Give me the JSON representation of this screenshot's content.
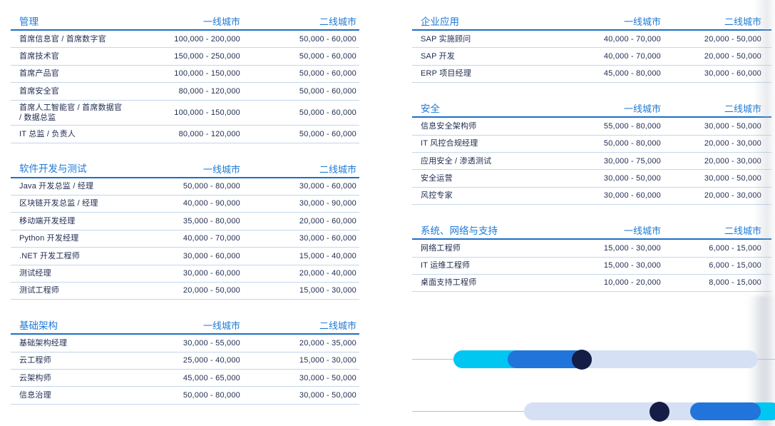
{
  "colors": {
    "title_blue": "#1e7ad6",
    "rule_strong": "#1a6fc9",
    "rule_light": "#c3d6ec",
    "text": "#1f2b50",
    "cyan": "#00c6f2",
    "blue": "#2174d9",
    "navy": "#141d45",
    "light_pill": "#d5e0f4",
    "thin_line": "#a9c4ea"
  },
  "columns": {
    "left": {
      "tables": [
        {
          "title": "管理",
          "col1": "一线城市",
          "col2": "二线城市",
          "rows": [
            {
              "label": "首席信息官 / 首席数字官",
              "tier1": "100,000 - 200,000",
              "tier2": "50,000 - 60,000"
            },
            {
              "label": "首席技术官",
              "tier1": "150,000 - 250,000",
              "tier2": "50,000 - 60,000"
            },
            {
              "label": "首席产品官",
              "tier1": "100,000 - 150,000",
              "tier2": "50,000 - 60,000"
            },
            {
              "label": "首席安全官",
              "tier1": "80,000 - 120,000",
              "tier2": "50,000 - 60,000"
            },
            {
              "label": "首席人工智能官 / 首席数据官 / 数据总监",
              "tier1": "100,000 - 150,000",
              "tier2": "50,000 - 60,000"
            },
            {
              "label": "IT 总监 / 负责人",
              "tier1": "80,000 - 120,000",
              "tier2": "50,000 - 60,000"
            }
          ]
        },
        {
          "title": "软件开发与测试",
          "col1": "一线城市",
          "col2": "二线城市",
          "rows": [
            {
              "label": "Java 开发总监 / 经理",
              "tier1": "50,000 - 80,000",
              "tier2": "30,000 - 60,000"
            },
            {
              "label": "区块链开发总监 / 经理",
              "tier1": "40,000 - 90,000",
              "tier2": "30,000 - 90,000"
            },
            {
              "label": "移动端开发经理",
              "tier1": "35,000 - 80,000",
              "tier2": "20,000 - 60,000"
            },
            {
              "label": "Python 开发经理",
              "tier1": "40,000 - 70,000",
              "tier2": "30,000 - 60,000"
            },
            {
              "label": ".NET 开发工程师",
              "tier1": "30,000 - 60,000",
              "tier2": "15,000 - 40,000"
            },
            {
              "label": "测试经理",
              "tier1": "30,000 - 60,000",
              "tier2": "20,000 - 40,000"
            },
            {
              "label": "测试工程师",
              "tier1": "20,000 - 50,000",
              "tier2": "15,000 - 30,000"
            }
          ]
        },
        {
          "title": "基础架构",
          "col1": "一线城市",
          "col2": "二线城市",
          "rows": [
            {
              "label": "基础架构经理",
              "tier1": "30,000 - 55,000",
              "tier2": "20,000 - 35,000"
            },
            {
              "label": "云工程师",
              "tier1": "25,000 - 40,000",
              "tier2": "15,000 - 30,000"
            },
            {
              "label": "云架构师",
              "tier1": "45,000 - 65,000",
              "tier2": "30,000 - 50,000"
            },
            {
              "label": "信息治理",
              "tier1": "50,000 - 80,000",
              "tier2": "30,000 - 50,000"
            }
          ]
        }
      ]
    },
    "right": {
      "tables": [
        {
          "title": "企业应用",
          "col1": "一线城市",
          "col2": "二线城市",
          "rows": [
            {
              "label": "SAP 实施顾问",
              "tier1": "40,000 - 70,000",
              "tier2": "20,000 - 50,000"
            },
            {
              "label": "SAP 开发",
              "tier1": "40,000 - 70,000",
              "tier2": "20,000 - 50,000"
            },
            {
              "label": "ERP 项目经理",
              "tier1": "45,000 - 80,000",
              "tier2": "30,000 - 60,000"
            }
          ]
        },
        {
          "title": "安全",
          "col1": "一线城市",
          "col2": "二线城市",
          "rows": [
            {
              "label": "信息安全架构师",
              "tier1": "55,000 - 80,000",
              "tier2": "30,000 - 50,000"
            },
            {
              "label": "IT 风控合规经理",
              "tier1": "50,000 - 80,000",
              "tier2": "20,000 - 30,000"
            },
            {
              "label": "应用安全 / 渗透测试",
              "tier1": "30,000 - 75,000",
              "tier2": "20,000 - 30,000"
            },
            {
              "label": "安全运营",
              "tier1": "30,000 - 50,000",
              "tier2": "30,000 - 50,000"
            },
            {
              "label": "风控专家",
              "tier1": "30,000 - 60,000",
              "tier2": "20,000 - 30,000"
            }
          ]
        },
        {
          "title": "系统、网络与支持",
          "col1": "一线城市",
          "col2": "二线城市",
          "rows": [
            {
              "label": "网络工程师",
              "tier1": "15,000 - 30,000",
              "tier2": "6,000 - 15,000"
            },
            {
              "label": "IT 运维工程师",
              "tier1": "15,000 - 30,000",
              "tier2": "6,000 - 15,000"
            },
            {
              "label": "桌面支持工程师",
              "tier1": "10,000 - 20,000",
              "tier2": "8,000 - 15,000"
            }
          ]
        }
      ]
    }
  }
}
